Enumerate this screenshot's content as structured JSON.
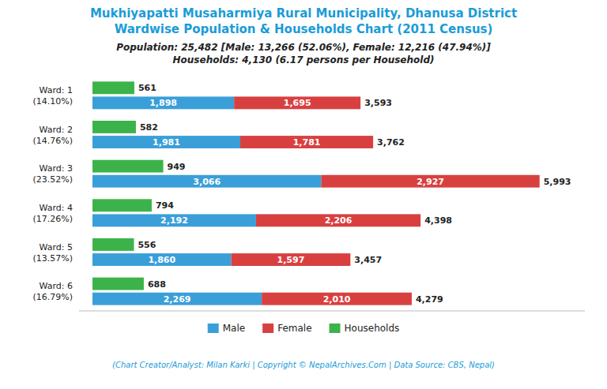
{
  "chart_data": {
    "type": "bar",
    "orientation": "horizontal",
    "title": "Mukhiyapatti Musaharmiya Rural Municipality, Dhanusa District\nWardwise Population & Households Chart (2011 Census)",
    "subtitle": "Population: 25,482 [Male: 13,266 (52.06%), Female: 12,216 (47.94%)]\nHouseholds: 4,130 (6.17 persons per Household)",
    "footer": "(Chart Creator/Analyst: Milan Karki | Copyright © NepalArchives.Com | Data Source: CBS, Nepal)",
    "categories": [
      "Ward: 1\n(14.10%)",
      "Ward: 2\n(14.76%)",
      "Ward: 3\n(23.52%)",
      "Ward: 4\n(17.26%)",
      "Ward: 5\n(13.57%)",
      "Ward: 6\n(16.79%)"
    ],
    "series": [
      {
        "name": "Male",
        "type": "stacked_bar",
        "color": "#3a9fd8",
        "values": [
          1898,
          1981,
          3066,
          2192,
          1860,
          2269
        ],
        "value_labels": [
          "1,898",
          "1,981",
          "3,066",
          "2,192",
          "1,860",
          "2,269"
        ]
      },
      {
        "name": "Female",
        "type": "stacked_bar",
        "color": "#d84040",
        "values": [
          1695,
          1781,
          2927,
          2206,
          1597,
          2010
        ],
        "value_labels": [
          "1,695",
          "1,781",
          "2,927",
          "2,206",
          "1,597",
          "2,010"
        ]
      },
      {
        "name": "Households",
        "type": "bar",
        "color": "#3cb34a",
        "values": [
          561,
          582,
          949,
          794,
          556,
          688
        ],
        "value_labels": [
          "561",
          "582",
          "949",
          "794",
          "556",
          "688"
        ]
      }
    ],
    "totals": [
      3593,
      3762,
      5993,
      4398,
      3457,
      4279
    ],
    "total_labels": [
      "3,593",
      "3,762",
      "5,993",
      "4,398",
      "3,457",
      "4,279"
    ],
    "xlim": [
      -180,
      6600
    ],
    "tick_labels": false,
    "grid": false,
    "data_labels": true,
    "legend": "bottom"
  }
}
